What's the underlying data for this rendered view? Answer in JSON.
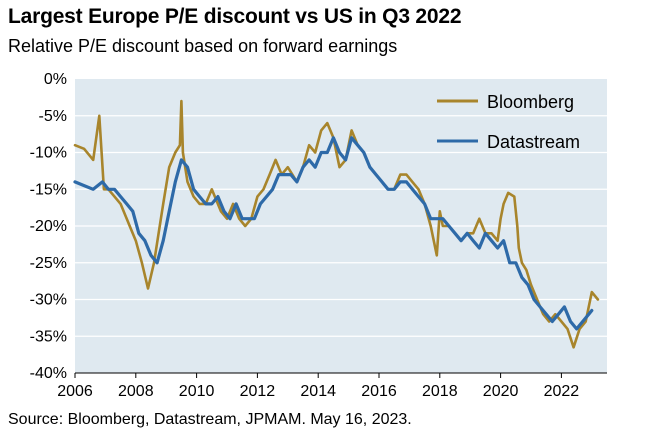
{
  "title": "Largest Europe P/E discount vs US in Q3 2022",
  "subtitle": "Relative P/E discount based on forward earnings",
  "source": "Source: Bloomberg, Datastream, JPMAM. May 16, 2023.",
  "colors": {
    "plot_background": "#dfe9f0",
    "bloomberg": "#a8852c",
    "datastream": "#2e6aa8"
  },
  "chart_data": {
    "type": "line",
    "title": "Largest Europe P/E discount vs US in Q3 2022",
    "subtitle": "Relative P/E discount based on forward earnings",
    "xlabel": "",
    "ylabel": "",
    "xlim": [
      2006,
      2023.5
    ],
    "ylim": [
      -40,
      0
    ],
    "x_ticks": [
      "2006",
      "2008",
      "2010",
      "2012",
      "2014",
      "2016",
      "2018",
      "2020",
      "2022"
    ],
    "y_ticks": [
      "0%",
      "-5%",
      "-10%",
      "-15%",
      "-20%",
      "-25%",
      "-30%",
      "-35%",
      "-40%"
    ],
    "grid": true,
    "legend_position": "top-right",
    "series": [
      {
        "name": "Bloomberg",
        "color": "#a8852c",
        "x": [
          2006.0,
          2006.3,
          2006.6,
          2006.8,
          2006.95,
          2007.1,
          2007.3,
          2007.5,
          2007.8,
          2008.0,
          2008.2,
          2008.4,
          2008.6,
          2008.75,
          2008.9,
          2009.1,
          2009.3,
          2009.45,
          2009.5,
          2009.55,
          2009.7,
          2009.9,
          2010.1,
          2010.3,
          2010.5,
          2010.8,
          2011.0,
          2011.2,
          2011.4,
          2011.6,
          2011.8,
          2012.0,
          2012.2,
          2012.4,
          2012.6,
          2012.8,
          2013.0,
          2013.3,
          2013.5,
          2013.7,
          2013.9,
          2014.1,
          2014.3,
          2014.5,
          2014.7,
          2014.9,
          2015.1,
          2015.3,
          2015.5,
          2015.7,
          2015.9,
          2016.1,
          2016.3,
          2016.5,
          2016.7,
          2016.9,
          2017.1,
          2017.3,
          2017.5,
          2017.7,
          2017.9,
          2018.0,
          2018.1,
          2018.3,
          2018.5,
          2018.7,
          2018.9,
          2019.1,
          2019.3,
          2019.5,
          2019.7,
          2019.9,
          2020.0,
          2020.1,
          2020.25,
          2020.45,
          2020.55,
          2020.6,
          2020.7,
          2020.85,
          2021.0,
          2021.2,
          2021.4,
          2021.6,
          2021.8,
          2022.0,
          2022.2,
          2022.4,
          2022.6,
          2022.8,
          2023.0,
          2023.2
        ],
        "values": [
          -9,
          -9.5,
          -11,
          -5,
          -15,
          -15,
          -16,
          -17,
          -20,
          -22,
          -25,
          -28.5,
          -25,
          -21,
          -17,
          -12,
          -10,
          -9,
          -3,
          -10,
          -14,
          -16,
          -17,
          -17,
          -15,
          -18,
          -19,
          -17,
          -19,
          -20,
          -19,
          -16,
          -15,
          -13,
          -11,
          -13,
          -12,
          -14,
          -12,
          -9,
          -10,
          -7,
          -6,
          -8,
          -12,
          -11,
          -7,
          -9,
          -10,
          -12,
          -13,
          -14,
          -15,
          -15,
          -13,
          -13,
          -14,
          -15,
          -17,
          -20,
          -24,
          -18,
          -20,
          -20,
          -21,
          -22,
          -21,
          -21,
          -19,
          -21,
          -21,
          -22,
          -19,
          -17,
          -15.5,
          -16,
          -20,
          -23,
          -25,
          -26,
          -28,
          -30,
          -32,
          -33,
          -32,
          -33,
          -34,
          -36.5,
          -34,
          -33,
          -29,
          -30
        ]
      },
      {
        "name": "Datastream",
        "color": "#2e6aa8",
        "x": [
          2006.0,
          2006.3,
          2006.6,
          2006.9,
          2007.1,
          2007.3,
          2007.5,
          2007.7,
          2007.9,
          2008.1,
          2008.3,
          2008.5,
          2008.7,
          2008.9,
          2009.1,
          2009.3,
          2009.5,
          2009.7,
          2009.9,
          2010.1,
          2010.3,
          2010.5,
          2010.7,
          2010.9,
          2011.1,
          2011.3,
          2011.5,
          2011.7,
          2011.9,
          2012.1,
          2012.3,
          2012.5,
          2012.7,
          2012.9,
          2013.1,
          2013.3,
          2013.5,
          2013.7,
          2013.9,
          2014.1,
          2014.3,
          2014.5,
          2014.7,
          2014.9,
          2015.1,
          2015.3,
          2015.5,
          2015.7,
          2015.9,
          2016.1,
          2016.3,
          2016.5,
          2016.7,
          2016.9,
          2017.1,
          2017.3,
          2017.5,
          2017.7,
          2017.9,
          2018.1,
          2018.3,
          2018.5,
          2018.7,
          2018.9,
          2019.1,
          2019.3,
          2019.5,
          2019.7,
          2019.9,
          2020.1,
          2020.3,
          2020.5,
          2020.7,
          2020.9,
          2021.1,
          2021.3,
          2021.5,
          2021.7,
          2021.9,
          2022.1,
          2022.3,
          2022.5,
          2022.7,
          2022.9,
          2023.0
        ],
        "values": [
          -14,
          -14.5,
          -15,
          -14,
          -15,
          -15,
          -16,
          -17,
          -18,
          -21,
          -22,
          -24,
          -25,
          -22,
          -18,
          -14,
          -11,
          -12,
          -15,
          -16,
          -17,
          -17,
          -16,
          -18,
          -19,
          -17,
          -19,
          -19,
          -19,
          -17,
          -16,
          -15,
          -13,
          -13,
          -13,
          -14,
          -12,
          -11,
          -12,
          -10,
          -10,
          -8,
          -10,
          -11,
          -8,
          -9,
          -10,
          -12,
          -13,
          -14,
          -15,
          -15,
          -14,
          -14,
          -15,
          -16,
          -17,
          -19,
          -19,
          -19,
          -20,
          -21,
          -22,
          -21,
          -22,
          -23,
          -21,
          -22,
          -23,
          -22,
          -25,
          -25,
          -27,
          -28,
          -30,
          -31,
          -32,
          -33,
          -32,
          -31,
          -33,
          -34,
          -33,
          -32,
          -31.5
        ]
      }
    ]
  }
}
